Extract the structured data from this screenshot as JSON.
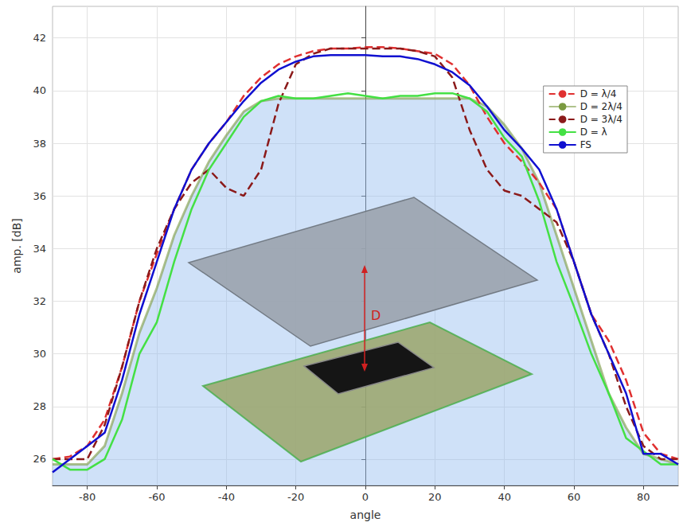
{
  "chart_data": {
    "type": "line",
    "x_label": "angle",
    "y_label": "amp. [dB]",
    "x": [
      -90,
      -85,
      -80,
      -75,
      -70,
      -65,
      -60,
      -55,
      -50,
      -45,
      -40,
      -35,
      -30,
      -25,
      -20,
      -15,
      -10,
      -5,
      0,
      5,
      10,
      15,
      20,
      25,
      30,
      35,
      40,
      45,
      50,
      55,
      60,
      65,
      70,
      75,
      80,
      85,
      90
    ],
    "series": [
      {
        "name": "D = λ/4",
        "color": "#e03030",
        "line_style": "dashed",
        "marker": "none",
        "values": [
          26,
          26.1,
          26.5,
          27.5,
          29.5,
          32,
          33.8,
          35.5,
          37,
          38,
          38.8,
          39.8,
          40.5,
          41,
          41.3,
          41.5,
          41.6,
          41.6,
          41.65,
          41.65,
          41.6,
          41.5,
          41.4,
          41,
          40.2,
          39,
          38,
          37.3,
          36.5,
          35.5,
          33.5,
          31.5,
          30.5,
          29,
          27,
          26.2,
          26
        ]
      },
      {
        "name": "D = 2λ/4",
        "type": "area",
        "color": "#7a9a40",
        "line_style": "solid",
        "marker": "none",
        "values": [
          25.8,
          25.8,
          25.8,
          26.5,
          28.5,
          30.8,
          32.5,
          34.5,
          36,
          37.3,
          38.3,
          39.2,
          39.6,
          39.7,
          39.7,
          39.7,
          39.7,
          39.7,
          39.7,
          39.7,
          39.7,
          39.7,
          39.7,
          39.7,
          39.7,
          39.4,
          38.7,
          37.8,
          36.5,
          34.5,
          32.5,
          30.5,
          28.5,
          27.2,
          26.2,
          26,
          25.8
        ]
      },
      {
        "name": "D = 3λ/4",
        "color": "#8b1a1a",
        "line_style": "dashed",
        "marker": "none",
        "values": [
          26,
          26,
          26,
          27.3,
          29.5,
          32,
          34,
          35.5,
          36.5,
          37,
          36.3,
          36,
          37,
          39.5,
          41,
          41.4,
          41.6,
          41.6,
          41.6,
          41.6,
          41.6,
          41.5,
          41.3,
          40.5,
          38.5,
          37,
          36.2,
          36,
          35.5,
          35,
          33.5,
          31.5,
          30,
          28,
          26.5,
          26,
          26
        ]
      },
      {
        "name": "D = λ",
        "color": "#44e044",
        "line_style": "solid",
        "marker": "none",
        "values": [
          26,
          25.6,
          25.6,
          26,
          27.5,
          30,
          31.2,
          33.5,
          35.5,
          37,
          38,
          39,
          39.6,
          39.8,
          39.7,
          39.7,
          39.8,
          39.9,
          39.8,
          39.7,
          39.8,
          39.8,
          39.9,
          39.9,
          39.7,
          39.2,
          38.2,
          37.5,
          35.8,
          33.5,
          31.8,
          30,
          28.5,
          26.8,
          26.3,
          25.8,
          25.8
        ]
      },
      {
        "name": "FS",
        "color": "#1010d0",
        "line_style": "solid",
        "marker": "none",
        "values": [
          25.5,
          26,
          26.5,
          27,
          29,
          31.5,
          33.5,
          35.5,
          37,
          38,
          38.8,
          39.6,
          40.3,
          40.8,
          41.1,
          41.3,
          41.35,
          41.35,
          41.35,
          41.3,
          41.3,
          41.2,
          41,
          40.7,
          40.2,
          39.4,
          38.5,
          37.8,
          37,
          35.5,
          33.5,
          31.5,
          30,
          28.5,
          26.2,
          26.2,
          25.8
        ]
      }
    ],
    "xlim": [
      -90,
      90
    ],
    "xticks": [
      -80,
      -60,
      -40,
      -20,
      0,
      20,
      40,
      60,
      80
    ],
    "ylim": [
      25,
      43.2
    ],
    "yticks": [
      26,
      28,
      30,
      32,
      34,
      36,
      38,
      40,
      42
    ],
    "grid": true,
    "legend": "upper right",
    "annotations": [
      "D"
    ]
  }
}
